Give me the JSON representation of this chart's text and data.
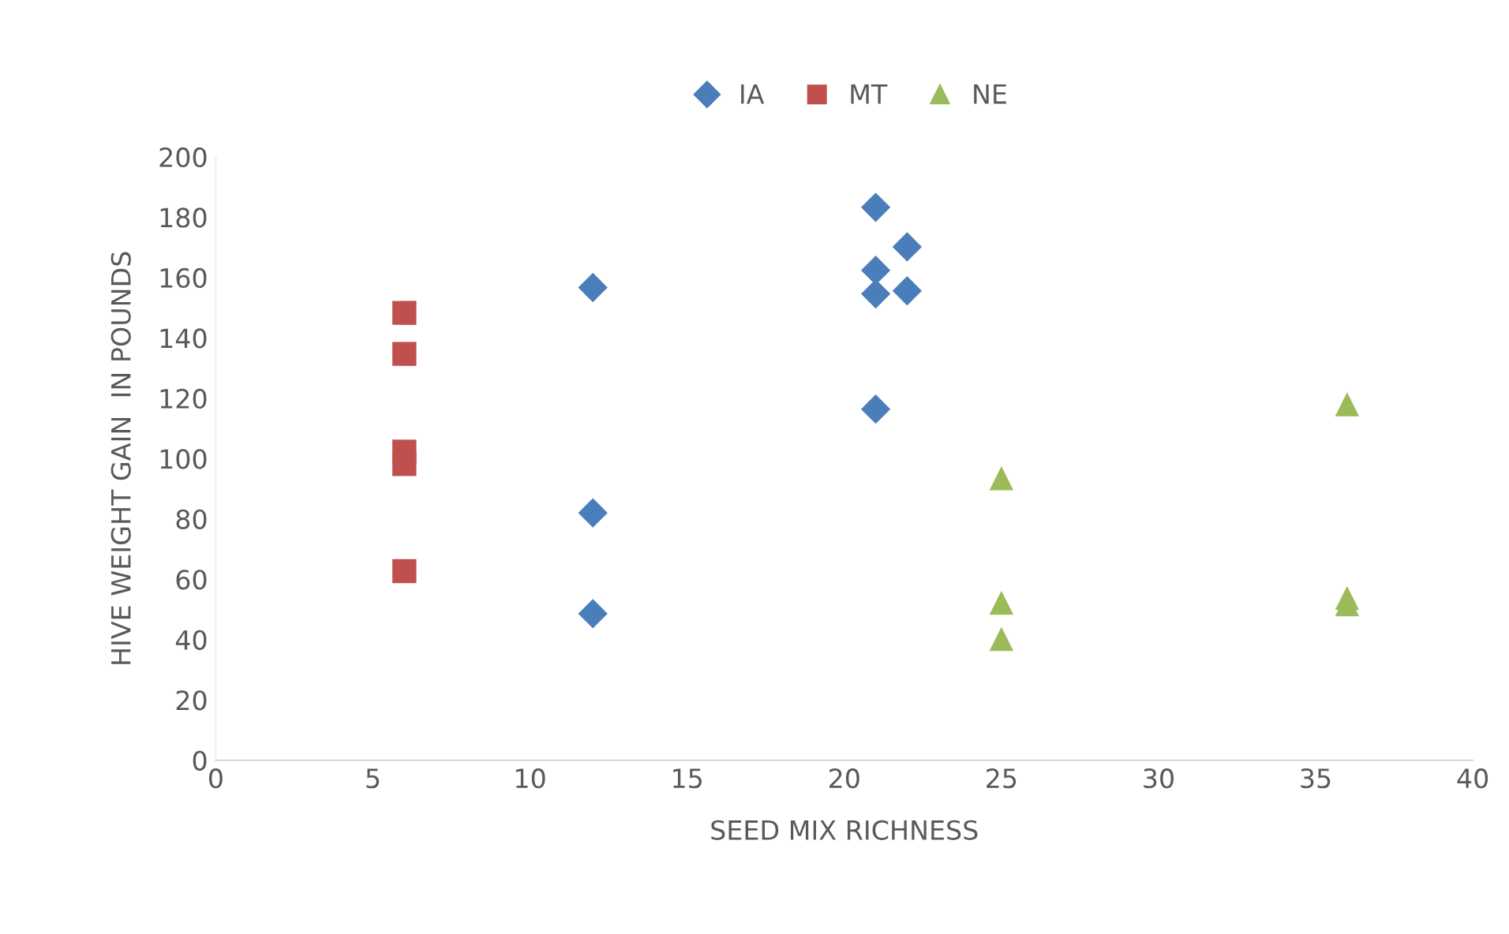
{
  "chart_data": {
    "type": "scatter",
    "xlabel": "SEED MIX RICHNESS",
    "ylabel": "HIVE WEIGHT GAIN  IN POUNDS",
    "xlim": [
      0,
      40
    ],
    "xticks": [
      0,
      5,
      10,
      15,
      20,
      25,
      30,
      35,
      40
    ],
    "ylim": [
      0,
      200
    ],
    "yticks": [
      0,
      20,
      40,
      60,
      80,
      100,
      120,
      140,
      160,
      180,
      200
    ],
    "grid": false,
    "legend": "top",
    "series": [
      {
        "name": "IA",
        "color": "#4a7ebb",
        "marker": "diamond",
        "x": [
          12,
          12,
          12,
          21,
          21,
          21,
          21,
          22,
          22
        ],
        "values": [
          156.7,
          82,
          48.6,
          183.3,
          162.4,
          154.6,
          116.4,
          170.2,
          155.6
        ]
      },
      {
        "name": "MT",
        "color": "#c0504d",
        "marker": "square",
        "x": [
          6,
          6,
          6,
          6,
          6
        ],
        "values": [
          148.3,
          134.7,
          102.3,
          98.2,
          62.7
        ]
      },
      {
        "name": "NE",
        "color": "#9bbb59",
        "marker": "triangle",
        "x": [
          25,
          25,
          25,
          36,
          36,
          36
        ],
        "values": [
          93.5,
          52.2,
          40.2,
          118,
          53.8,
          51.7
        ]
      }
    ]
  }
}
